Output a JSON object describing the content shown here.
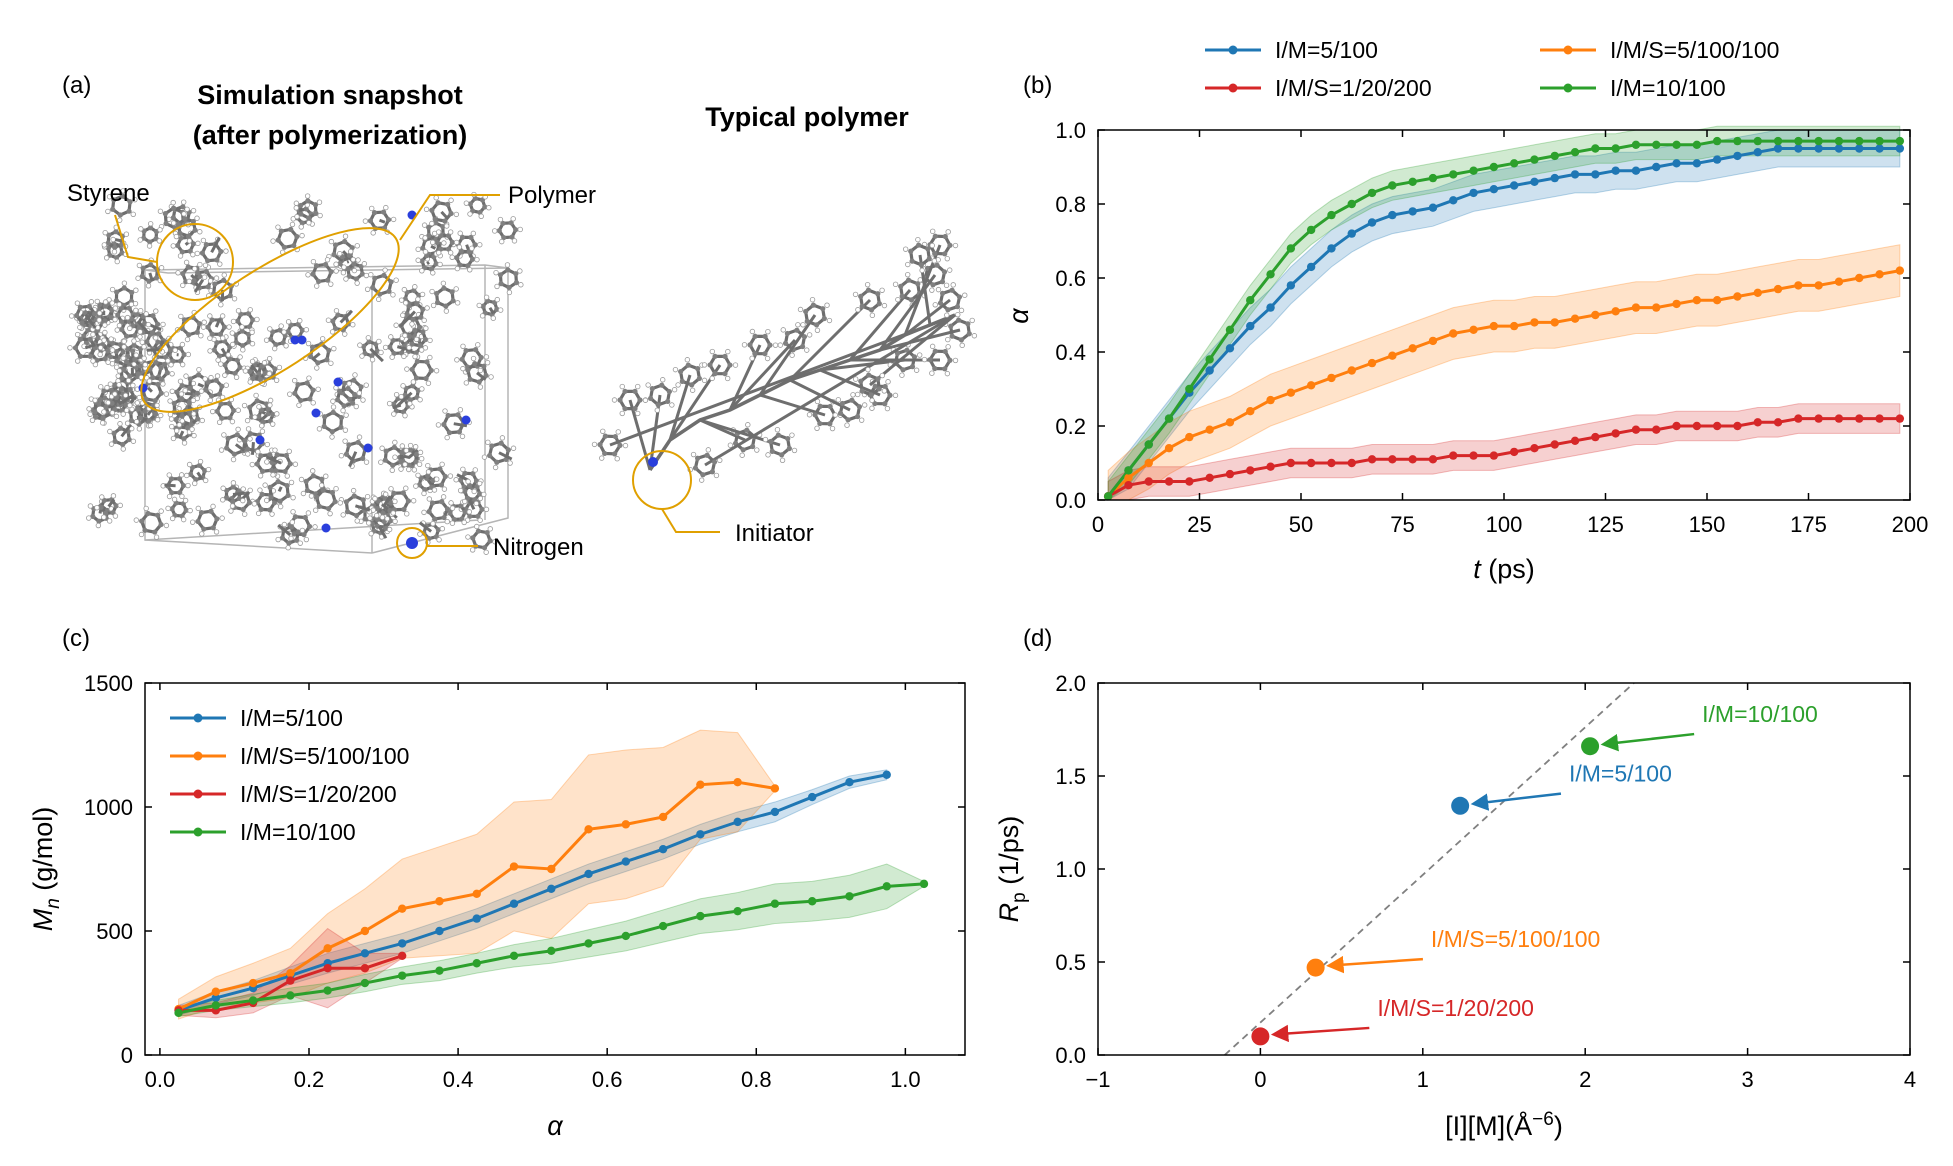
{
  "colors": {
    "blue": "#1f77b4",
    "orange": "#ff7f0e",
    "red": "#d62728",
    "green": "#2ca02c",
    "gold": "#e0a000"
  },
  "panel_a": {
    "label": "(a)",
    "title_line1": "Simulation snapshot",
    "title_line2": "(after polymerization)",
    "title_right": "Typical polymer",
    "callout_styrene": "Styrene",
    "callout_polymer": "Polymer",
    "callout_nitrogen": "Nitrogen",
    "callout_initiator": "Initiator"
  },
  "chart_data": [
    {
      "panel": "(b)",
      "type": "line",
      "xlabel_italic": "t",
      "xlabel_rest": " (ps)",
      "ylabel": "α",
      "xlim": [
        0,
        200
      ],
      "ylim": [
        0,
        1.0
      ],
      "xticks": [
        0,
        25,
        50,
        75,
        100,
        125,
        150,
        175,
        200
      ],
      "yticks": [
        0.0,
        0.2,
        0.4,
        0.6,
        0.8,
        1.0
      ],
      "ytick_labels": [
        "0.0",
        "0.2",
        "0.4",
        "0.6",
        "0.8",
        "1.0"
      ],
      "legend_position": "top-outside",
      "legend": [
        "I/M=5/100",
        "I/M/S=5/100/100",
        "I/M/S=1/20/200",
        "I/M=10/100"
      ],
      "series": [
        {
          "name": "I/M=5/100",
          "color": "blue",
          "band": 0.05,
          "x": [
            2.5,
            7.5,
            12.5,
            17.5,
            22.5,
            27.5,
            32.5,
            37.5,
            42.5,
            47.5,
            52.5,
            57.5,
            62.5,
            67.5,
            72.5,
            77.5,
            82.5,
            87.5,
            92.5,
            97.5,
            102.5,
            107.5,
            112.5,
            117.5,
            122.5,
            127.5,
            132.5,
            137.5,
            142.5,
            147.5,
            152.5,
            157.5,
            162.5,
            167.5,
            172.5,
            177.5,
            182.5,
            187.5,
            192.5,
            197.5
          ],
          "y": [
            0.01,
            0.08,
            0.15,
            0.22,
            0.29,
            0.35,
            0.41,
            0.47,
            0.52,
            0.58,
            0.63,
            0.68,
            0.72,
            0.75,
            0.77,
            0.78,
            0.79,
            0.81,
            0.83,
            0.84,
            0.85,
            0.86,
            0.87,
            0.88,
            0.88,
            0.89,
            0.89,
            0.9,
            0.91,
            0.91,
            0.92,
            0.93,
            0.94,
            0.95,
            0.95,
            0.95,
            0.95,
            0.95,
            0.95,
            0.95
          ]
        },
        {
          "name": "I/M/S=5/100/100",
          "color": "orange",
          "band": 0.07,
          "x": [
            2.5,
            7.5,
            12.5,
            17.5,
            22.5,
            27.5,
            32.5,
            37.5,
            42.5,
            47.5,
            52.5,
            57.5,
            62.5,
            67.5,
            72.5,
            77.5,
            82.5,
            87.5,
            92.5,
            97.5,
            102.5,
            107.5,
            112.5,
            117.5,
            122.5,
            127.5,
            132.5,
            137.5,
            142.5,
            147.5,
            152.5,
            157.5,
            162.5,
            167.5,
            172.5,
            177.5,
            182.5,
            187.5,
            192.5,
            197.5
          ],
          "y": [
            0.01,
            0.06,
            0.1,
            0.14,
            0.17,
            0.19,
            0.21,
            0.24,
            0.27,
            0.29,
            0.31,
            0.33,
            0.35,
            0.37,
            0.39,
            0.41,
            0.43,
            0.45,
            0.46,
            0.47,
            0.47,
            0.48,
            0.48,
            0.49,
            0.5,
            0.51,
            0.52,
            0.52,
            0.53,
            0.54,
            0.54,
            0.55,
            0.56,
            0.57,
            0.58,
            0.58,
            0.59,
            0.6,
            0.61,
            0.62
          ]
        },
        {
          "name": "I/M/S=1/20/200",
          "color": "red",
          "band": 0.04,
          "x": [
            2.5,
            7.5,
            12.5,
            17.5,
            22.5,
            27.5,
            32.5,
            37.5,
            42.5,
            47.5,
            52.5,
            57.5,
            62.5,
            67.5,
            72.5,
            77.5,
            82.5,
            87.5,
            92.5,
            97.5,
            102.5,
            107.5,
            112.5,
            117.5,
            122.5,
            127.5,
            132.5,
            137.5,
            142.5,
            147.5,
            152.5,
            157.5,
            162.5,
            167.5,
            172.5,
            177.5,
            182.5,
            187.5,
            192.5,
            197.5
          ],
          "y": [
            0.01,
            0.04,
            0.05,
            0.05,
            0.05,
            0.06,
            0.07,
            0.08,
            0.09,
            0.1,
            0.1,
            0.1,
            0.1,
            0.11,
            0.11,
            0.11,
            0.11,
            0.12,
            0.12,
            0.12,
            0.13,
            0.14,
            0.15,
            0.16,
            0.17,
            0.18,
            0.19,
            0.19,
            0.2,
            0.2,
            0.2,
            0.2,
            0.21,
            0.21,
            0.22,
            0.22,
            0.22,
            0.22,
            0.22,
            0.22
          ]
        },
        {
          "name": "I/M=10/100",
          "color": "green",
          "band": 0.04,
          "x": [
            2.5,
            7.5,
            12.5,
            17.5,
            22.5,
            27.5,
            32.5,
            37.5,
            42.5,
            47.5,
            52.5,
            57.5,
            62.5,
            67.5,
            72.5,
            77.5,
            82.5,
            87.5,
            92.5,
            97.5,
            102.5,
            107.5,
            112.5,
            117.5,
            122.5,
            127.5,
            132.5,
            137.5,
            142.5,
            147.5,
            152.5,
            157.5,
            162.5,
            167.5,
            172.5,
            177.5,
            182.5,
            187.5,
            192.5,
            197.5
          ],
          "y": [
            0.01,
            0.08,
            0.15,
            0.22,
            0.3,
            0.38,
            0.46,
            0.54,
            0.61,
            0.68,
            0.73,
            0.77,
            0.8,
            0.83,
            0.85,
            0.86,
            0.87,
            0.88,
            0.89,
            0.9,
            0.91,
            0.92,
            0.93,
            0.94,
            0.95,
            0.95,
            0.96,
            0.96,
            0.96,
            0.96,
            0.97,
            0.97,
            0.97,
            0.97,
            0.97,
            0.97,
            0.97,
            0.97,
            0.97,
            0.97
          ]
        }
      ]
    },
    {
      "panel": "(c)",
      "type": "line",
      "xlabel": "α",
      "ylabel_italic": "M",
      "ylabel_sub": "n",
      "ylabel_rest": " (g/mol)",
      "xlim": [
        -0.02,
        1.08
      ],
      "ylim": [
        0,
        1500
      ],
      "xticks": [
        0.0,
        0.2,
        0.4,
        0.6,
        0.8,
        1.0
      ],
      "xtick_labels": [
        "0.0",
        "0.2",
        "0.4",
        "0.6",
        "0.8",
        "1.0"
      ],
      "yticks": [
        0,
        500,
        1000,
        1500
      ],
      "ytick_labels": [
        "0",
        "500",
        "1000",
        "1500"
      ],
      "legend_position": "upper-left",
      "legend": [
        "I/M=5/100",
        "I/M/S=5/100/100",
        "I/M/S=1/20/200",
        "I/M=10/100"
      ],
      "series": [
        {
          "name": "I/M=5/100",
          "color": "blue",
          "x": [
            0.025,
            0.075,
            0.125,
            0.175,
            0.225,
            0.275,
            0.325,
            0.375,
            0.425,
            0.475,
            0.525,
            0.575,
            0.625,
            0.675,
            0.725,
            0.775,
            0.825,
            0.875,
            0.925,
            0.975
          ],
          "y": [
            180,
            230,
            270,
            320,
            370,
            410,
            450,
            500,
            550,
            610,
            670,
            730,
            780,
            830,
            890,
            940,
            980,
            1040,
            1100,
            1130
          ],
          "band": [
            20,
            25,
            30,
            35,
            40,
            40,
            40,
            40,
            40,
            40,
            40,
            40,
            40,
            40,
            40,
            40,
            40,
            30,
            25,
            20
          ]
        },
        {
          "name": "I/M/S=5/100/100",
          "color": "orange",
          "x": [
            0.025,
            0.075,
            0.125,
            0.175,
            0.225,
            0.275,
            0.325,
            0.375,
            0.425,
            0.475,
            0.525,
            0.575,
            0.625,
            0.675,
            0.725,
            0.775,
            0.825
          ],
          "y": [
            185,
            255,
            290,
            330,
            430,
            500,
            590,
            620,
            650,
            760,
            750,
            910,
            930,
            960,
            1090,
            1100,
            1075
          ],
          "band": [
            40,
            60,
            80,
            100,
            140,
            170,
            200,
            220,
            240,
            260,
            280,
            300,
            300,
            280,
            220,
            200,
            10
          ]
        },
        {
          "name": "I/M/S=1/20/200",
          "color": "red",
          "x": [
            0.025,
            0.075,
            0.125,
            0.175,
            0.225,
            0.275,
            0.325
          ],
          "y": [
            180,
            180,
            210,
            300,
            350,
            350,
            400
          ],
          "band": [
            20,
            30,
            40,
            60,
            160,
            60,
            10
          ]
        },
        {
          "name": "I/M=10/100",
          "color": "green",
          "x": [
            0.025,
            0.075,
            0.125,
            0.175,
            0.225,
            0.275,
            0.325,
            0.375,
            0.425,
            0.475,
            0.525,
            0.575,
            0.625,
            0.675,
            0.725,
            0.775,
            0.825,
            0.875,
            0.925,
            0.975,
            1.025
          ],
          "y": [
            170,
            200,
            220,
            240,
            260,
            290,
            320,
            340,
            370,
            400,
            420,
            450,
            480,
            520,
            560,
            580,
            610,
            620,
            640,
            680,
            690
          ],
          "band": [
            15,
            20,
            25,
            30,
            30,
            35,
            35,
            40,
            40,
            45,
            50,
            55,
            60,
            65,
            70,
            75,
            80,
            80,
            85,
            90,
            10
          ]
        }
      ]
    },
    {
      "panel": "(d)",
      "type": "scatter",
      "xlabel": "[I][M](Å",
      "xlabel_sup": "−6",
      "xlabel_close": ")",
      "ylabel_italic": "R",
      "ylabel_sub": "p",
      "ylabel_rest": " (1/ps)",
      "xlim": [
        -1,
        4
      ],
      "ylim": [
        0,
        2.0
      ],
      "xticks": [
        -1,
        0,
        1,
        2,
        3,
        4
      ],
      "xtick_labels": [
        "−1",
        "0",
        "1",
        "2",
        "3",
        "4"
      ],
      "yticks": [
        0.0,
        0.5,
        1.0,
        1.5,
        2.0
      ],
      "ytick_labels": [
        "0.0",
        "0.5",
        "1.0",
        "1.5",
        "2.0"
      ],
      "fit_line": {
        "x": [
          -0.22,
          2.3
        ],
        "y": [
          0.0,
          2.0
        ]
      },
      "points": [
        {
          "name": "I/M=5/100",
          "color": "blue",
          "x": 1.23,
          "y": 1.34,
          "label_x": 1.9,
          "label_y": 1.47
        },
        {
          "name": "I/M/S=5/100/100",
          "color": "orange",
          "x": 0.34,
          "y": 0.47,
          "label_x": 1.05,
          "label_y": 0.58
        },
        {
          "name": "I/M/S=1/20/200",
          "color": "red",
          "x": 0.0,
          "y": 0.1,
          "label_x": 0.72,
          "label_y": 0.21
        },
        {
          "name": "I/M=10/100",
          "color": "green",
          "x": 2.03,
          "y": 1.66,
          "label_x": 2.72,
          "label_y": 1.79
        }
      ]
    }
  ]
}
